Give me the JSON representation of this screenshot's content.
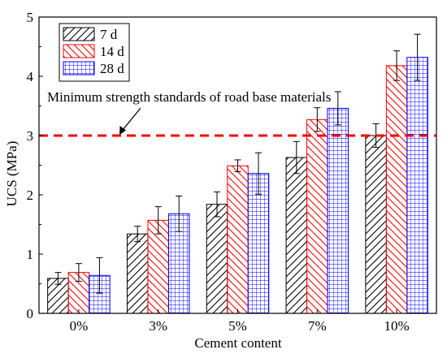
{
  "chart_data": {
    "type": "bar",
    "xlabel": "Cement content",
    "ylabel": "UCS (MPa)",
    "ylim": [
      0,
      5
    ],
    "yticks": [
      "0",
      "1",
      "2",
      "3",
      "4",
      "5"
    ],
    "categories": [
      "0%",
      "3%",
      "5%",
      "7%",
      "10%"
    ],
    "series": [
      {
        "name": "7 d",
        "values": [
          0.59,
          1.34,
          1.84,
          2.63,
          3.0
        ],
        "errors": [
          0.1,
          0.13,
          0.21,
          0.27,
          0.2
        ],
        "color": "#000000",
        "pattern": "diagonal"
      },
      {
        "name": "14 d",
        "values": [
          0.69,
          1.57,
          2.49,
          3.27,
          4.18
        ],
        "errors": [
          0.15,
          0.23,
          0.1,
          0.2,
          0.25
        ],
        "color": "#ff0000",
        "pattern": "diagonal"
      },
      {
        "name": "28 d",
        "values": [
          0.64,
          1.68,
          2.36,
          3.46,
          4.32
        ],
        "errors": [
          0.3,
          0.3,
          0.35,
          0.28,
          0.39
        ],
        "color": "#0000ff",
        "pattern": "grid"
      }
    ],
    "reference_line": {
      "value": 3.0,
      "color": "#ff0000",
      "style": "dashed"
    },
    "annotation": "Minimum strength standards of road base materials",
    "legend_position": "top-left",
    "grid": false
  }
}
